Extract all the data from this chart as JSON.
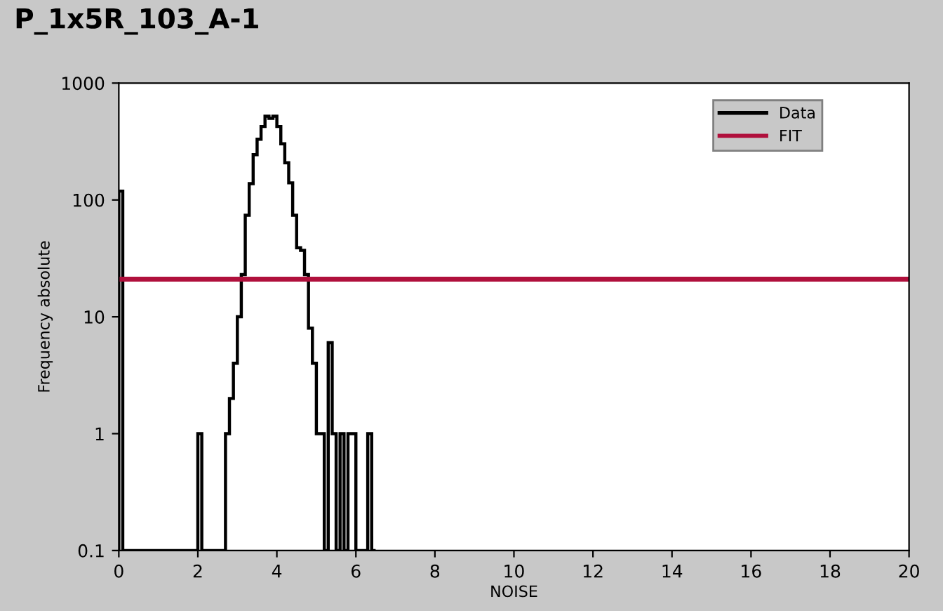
{
  "chart_data": {
    "type": "histogram",
    "title": "P_1x5R_103_A-1",
    "xlabel": "NOISE",
    "ylabel": "Frequency absolute",
    "bins": [
      0,
      0.1,
      0.2,
      0.3,
      0.4,
      0.5,
      0.6,
      0.7,
      0.8,
      0.9,
      1,
      1.1,
      1.2,
      1.3,
      1.4,
      1.5,
      1.6,
      1.7,
      1.8,
      1.9,
      2,
      2.1,
      2.2,
      2.3,
      2.4,
      2.5,
      2.6,
      2.7,
      2.8,
      2.9,
      3,
      3.1,
      3.2,
      3.3,
      3.4,
      3.5,
      3.6,
      3.7,
      3.8,
      3.9,
      4,
      4.1,
      4.2,
      4.3,
      4.4,
      4.5,
      4.6,
      4.7,
      4.8,
      4.9,
      5,
      5.1,
      5.2,
      5.3,
      5.4,
      5.5,
      5.6,
      5.7,
      5.8,
      5.9,
      6,
      6.1,
      6.2,
      6.3,
      6.4,
      6.5
    ],
    "series": [
      {
        "name": "Data",
        "color": "#000000",
        "values": [
          119,
          null,
          null,
          null,
          null,
          null,
          null,
          null,
          null,
          null,
          null,
          null,
          null,
          null,
          null,
          null,
          null,
          null,
          null,
          null,
          1,
          null,
          null,
          null,
          null,
          null,
          null,
          1,
          2,
          4,
          10,
          23,
          74,
          138,
          244,
          331,
          425,
          520,
          500,
          520,
          425,
          302,
          208,
          140,
          74,
          39,
          37,
          23,
          8,
          4,
          1,
          1,
          null,
          6,
          1,
          null,
          1,
          null,
          1,
          1,
          null,
          null,
          null,
          1,
          null
        ]
      },
      {
        "name": "FIT",
        "type": "line",
        "color": "#b0103c",
        "x": [
          0,
          20
        ],
        "values": [
          21,
          21
        ]
      }
    ],
    "log": "y",
    "xlim": [
      0,
      20
    ],
    "xticks": [
      0,
      2,
      4,
      6,
      8,
      10,
      12,
      14,
      16,
      18,
      20
    ],
    "ylim": [
      0.1,
      1000
    ],
    "yticks": [
      0.1,
      1,
      10,
      100,
      1000
    ],
    "grid": false,
    "legend": "top right"
  }
}
